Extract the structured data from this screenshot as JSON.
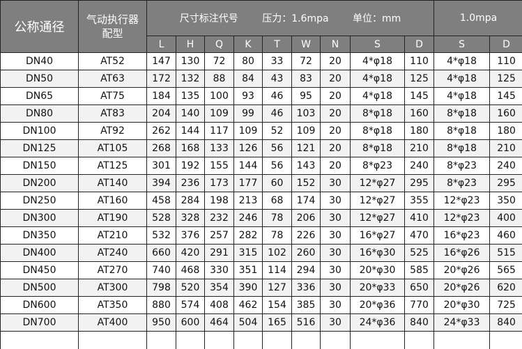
{
  "header": {
    "nominal_diameter": "公称通径",
    "actuator_line1": "气动执行器",
    "actuator_line2": "配型",
    "dim_code": "尺寸标注代号",
    "pressure": "压力：1.6mpa",
    "unit": "单位：mm",
    "pressure_2": "1.0mpa",
    "columns": [
      "L",
      "H",
      "Q",
      "K",
      "T",
      "W",
      "N",
      "S",
      "D",
      "S",
      "D"
    ]
  },
  "rows": [
    [
      "DN40",
      "AT52",
      "147",
      "130",
      "72",
      "80",
      "33",
      "72",
      "20",
      "4*φ18",
      "110",
      "4*φ18",
      "110"
    ],
    [
      "DN50",
      "AT63",
      "172",
      "132",
      "88",
      "84",
      "43",
      "83",
      "20",
      "4*φ18",
      "125",
      "4*φ18",
      "125"
    ],
    [
      "DN65",
      "AT75",
      "184",
      "135",
      "100",
      "93",
      "46",
      "95",
      "20",
      "4*φ18",
      "145",
      "4*φ18",
      "145"
    ],
    [
      "DN80",
      "AT83",
      "204",
      "140",
      "109",
      "99",
      "46",
      "103",
      "20",
      "8*φ18",
      "160",
      "8*φ18",
      "160"
    ],
    [
      "DN100",
      "AT92",
      "262",
      "144",
      "117",
      "109",
      "52",
      "109",
      "20",
      "8*φ18",
      "180",
      "8*φ18",
      "180"
    ],
    [
      "DN125",
      "AT105",
      "268",
      "168",
      "133",
      "126",
      "56",
      "121",
      "20",
      "8*φ18",
      "210",
      "8*φ18",
      "210"
    ],
    [
      "DN150",
      "AT125",
      "301",
      "192",
      "155",
      "144",
      "56",
      "143",
      "20",
      "8*φ23",
      "240",
      "8*φ23",
      "240"
    ],
    [
      "DN200",
      "AT140",
      "394",
      "236",
      "173",
      "177",
      "60",
      "152",
      "30",
      "12*φ27",
      "295",
      "8*φ23",
      "295"
    ],
    [
      "DN250",
      "AT160",
      "458",
      "284",
      "198",
      "213",
      "68",
      "174",
      "30",
      "12*φ27",
      "355",
      "12*φ23",
      "350"
    ],
    [
      "DN300",
      "AT190",
      "528",
      "328",
      "232",
      "246",
      "78",
      "206",
      "30",
      "12*φ27",
      "410",
      "12*φ23",
      "400"
    ],
    [
      "DN350",
      "AT210",
      "532",
      "376",
      "257",
      "282",
      "78",
      "226",
      "30",
      "16*φ27",
      "470",
      "16*φ23",
      "460"
    ],
    [
      "DN400",
      "AT240",
      "660",
      "420",
      "291",
      "315",
      "102",
      "260",
      "30",
      "16*φ30",
      "525",
      "16*φ26",
      "515"
    ],
    [
      "DN450",
      "AT270",
      "740",
      "468",
      "330",
      "351",
      "114",
      "294",
      "30",
      "20*φ30",
      "585",
      "20*φ26",
      "565"
    ],
    [
      "DN500",
      "AT300",
      "798",
      "520",
      "354",
      "390",
      "127",
      "336",
      "30",
      "20*φ33",
      "650",
      "20*φ26",
      "620"
    ],
    [
      "DN600",
      "AT350",
      "880",
      "574",
      "408",
      "462",
      "154",
      "385",
      "30",
      "20*φ36",
      "770",
      "20*φ30",
      "725"
    ],
    [
      "DN700",
      "AT400",
      "950",
      "600",
      "464",
      "504",
      "165",
      "516",
      "30",
      "24*φ36",
      "840",
      "24*φ33",
      "840"
    ]
  ],
  "colors": {
    "header_bg": "#7f7f7f",
    "header_text": "#ffffff",
    "alt_row": "#f2f2f2",
    "border": "#222222"
  }
}
